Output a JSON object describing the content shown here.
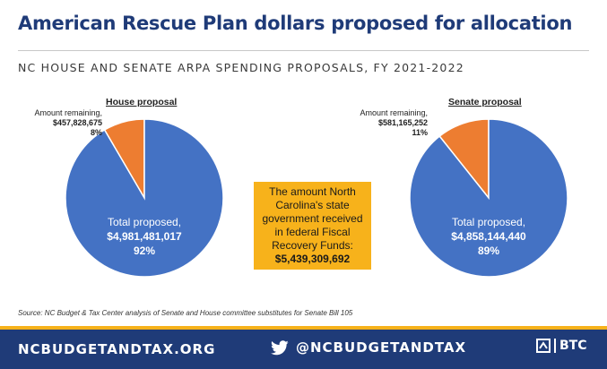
{
  "title": "American Rescue Plan dollars proposed for allocation",
  "subtitle": "NC HOUSE AND SENATE ARPA SPENDING PROPOSALS, FY 2021-2022",
  "colors": {
    "proposed": "#4472c4",
    "remaining": "#ed7d31",
    "navy": "#1f3b78",
    "gold": "#f7b21b"
  },
  "chart_data": [
    {
      "type": "pie",
      "title": "House proposal",
      "slices": [
        {
          "name": "Amount remaining,",
          "value": 457828675,
          "value_label": "$457,828,675",
          "percent_label": "8%",
          "color": "#ed7d31"
        },
        {
          "name": "Total proposed,",
          "value": 4981481017,
          "value_label": "$4,981,481,017",
          "percent_label": "92%",
          "color": "#4472c4"
        }
      ]
    },
    {
      "type": "pie",
      "title": "Senate proposal",
      "slices": [
        {
          "name": "Amount remaining,",
          "value": 581165252,
          "value_label": "$581,165,252",
          "percent_label": "11%",
          "color": "#ed7d31"
        },
        {
          "name": "Total proposed,",
          "value": 4858144440,
          "value_label": "$4,858,144,440",
          "percent_label": "89%",
          "color": "#4472c4"
        }
      ]
    }
  ],
  "callout": {
    "text": "The amount North Carolina's state government received in federal Fiscal Recovery Funds:",
    "value": "$5,439,309,692"
  },
  "source": "Source: NC Budget & Tax Center analysis of Senate and House committee substitutes for Senate Bill 105",
  "footer": {
    "site": "NCBUDGETANDTAX.ORG",
    "social_icon": "twitter-bird-icon",
    "handle": "@NCBUDGETANDTAX",
    "logo": "BTC"
  }
}
